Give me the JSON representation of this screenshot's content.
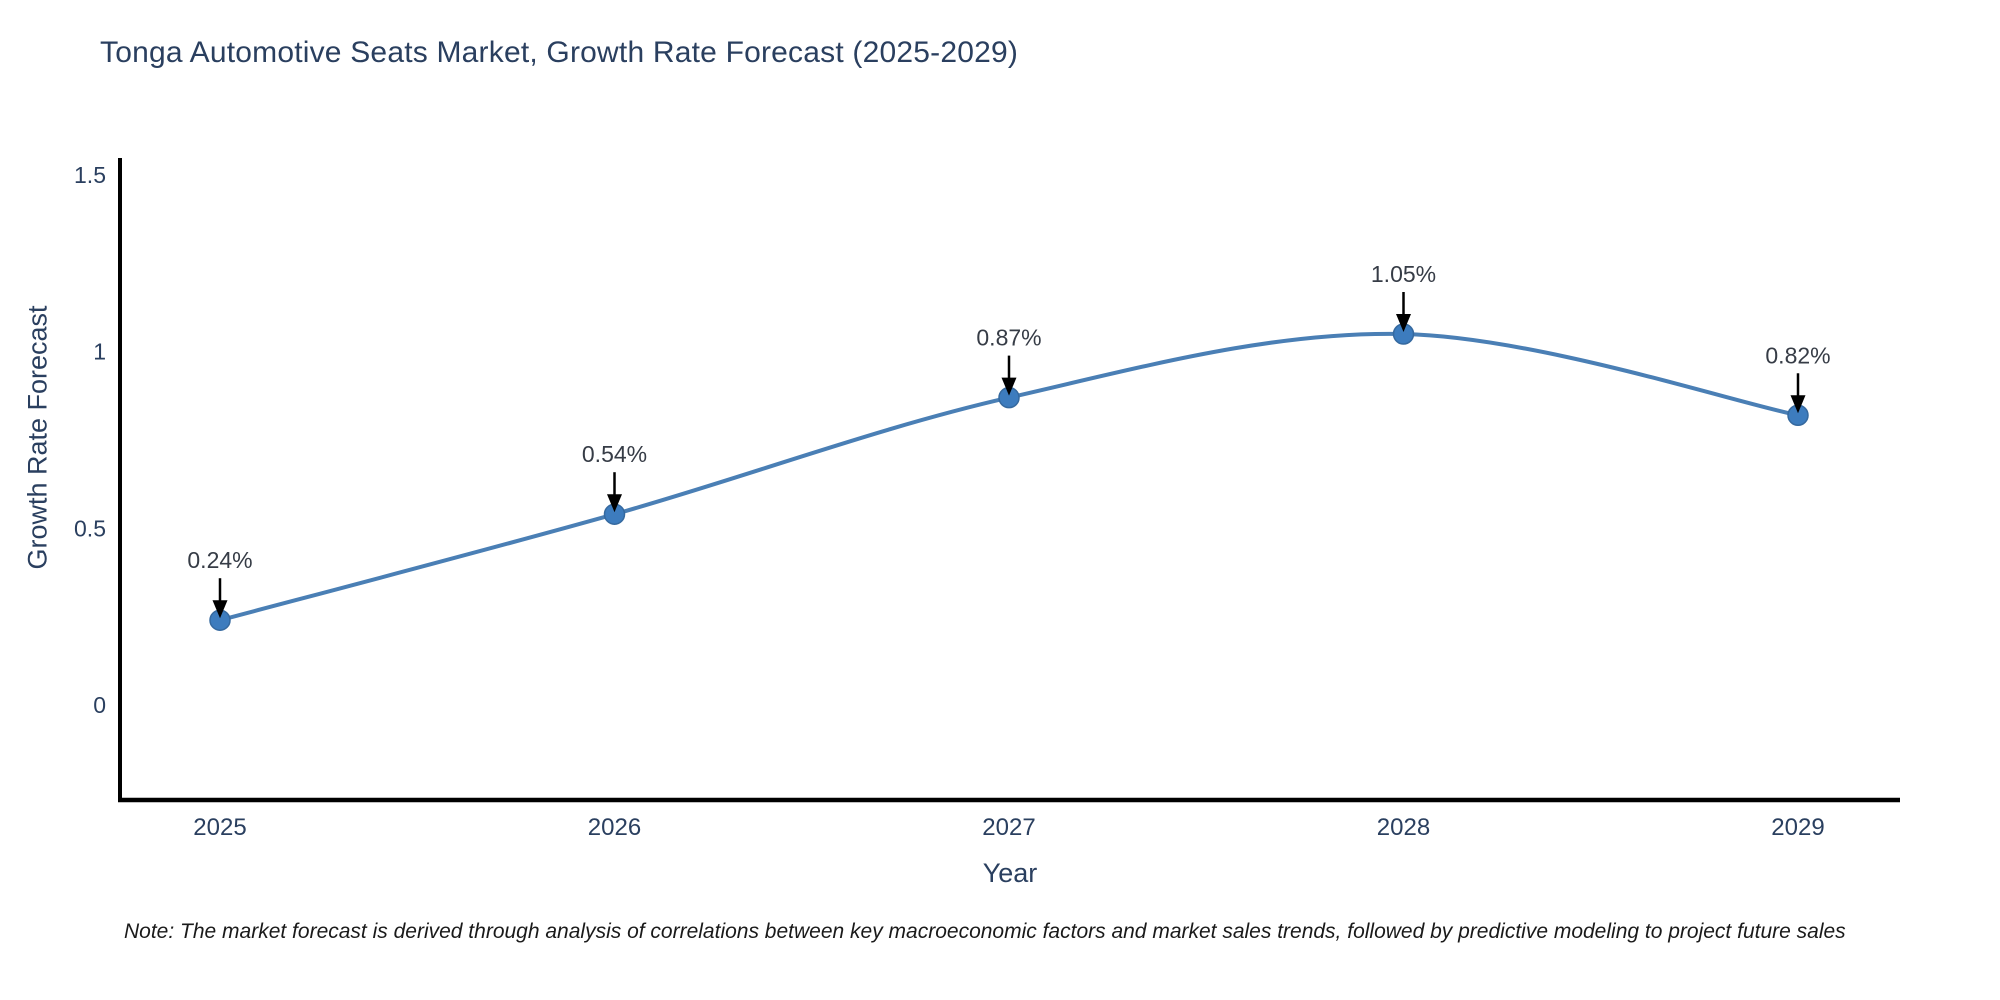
{
  "chart_data": {
    "type": "line",
    "title": "Tonga Automotive Seats Market, Growth Rate Forecast (2025-2029)",
    "xlabel": "Year",
    "ylabel": "Growth Rate Forecast",
    "x": [
      2025,
      2026,
      2027,
      2028,
      2029
    ],
    "x_tick_labels": [
      "2025",
      "2026",
      "2027",
      "2028",
      "2029"
    ],
    "series": [
      {
        "name": "Growth Rate Forecast",
        "values": [
          0.24,
          0.54,
          0.87,
          1.05,
          0.82
        ],
        "point_labels": [
          "0.24%",
          "0.54%",
          "0.87%",
          "1.05%",
          "0.82%"
        ]
      }
    ],
    "y_ticks": [
      0,
      0.5,
      1,
      1.5
    ],
    "y_tick_labels": [
      "0",
      "0.5",
      "1",
      "1.5"
    ],
    "ylim": [
      -0.27,
      1.55
    ],
    "grid": false,
    "legend": null,
    "line_shape": "spline",
    "annotations": "value labels with downward arrows above each point",
    "colors": {
      "line": "#4a7fb5",
      "marker_fill": "#3d7cbe",
      "marker_edge": "#35699f",
      "arrow": "#000000",
      "axis_line": "#000000",
      "axis_text": "#2a3f5f",
      "annotation_text": "#363c46",
      "background": "#ffffff"
    }
  },
  "note": {
    "text": "Note: The market forecast is derived through analysis of correlations between key macroeconomic factors and market sales trends, followed by predictive modeling to project future sales"
  }
}
